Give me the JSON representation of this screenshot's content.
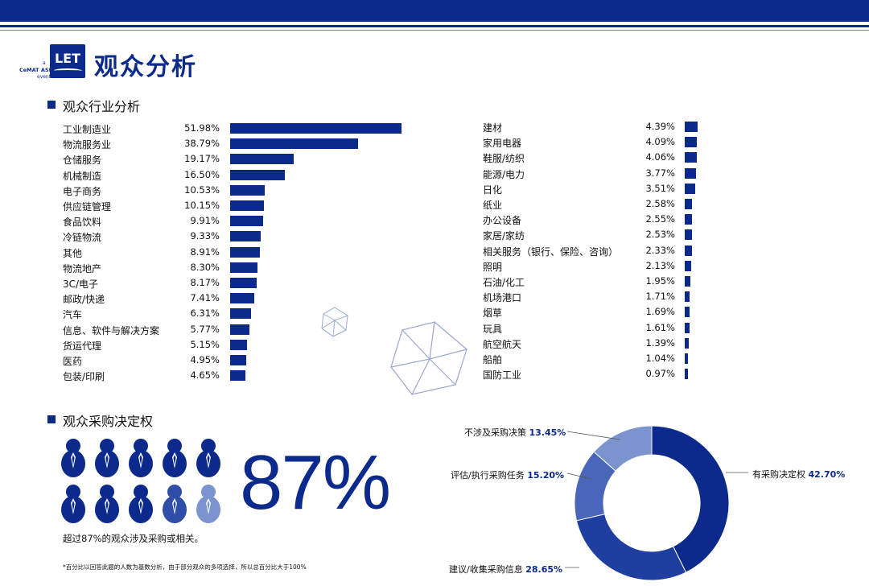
{
  "header": {
    "title": "观众分析",
    "logo_text": "LET",
    "logo_sub_a": "a",
    "logo_sub_brand": "CeMAT ASIA",
    "logo_sub_event": "event"
  },
  "industry_section": {
    "title": "观众行业分析"
  },
  "decision_section": {
    "title": "观众采购决定权",
    "big_number": "87%",
    "note": "超过87%的观众涉及采购或相关。",
    "people_total": 10,
    "people_highlighted": 9
  },
  "footnote": "*百分比以回答此题的人数为基数分析，由于部分观众的多项选择，所以总百分比大于100%",
  "colors": {
    "primary": "#0b2a8c",
    "donut": [
      "#0b2a8c",
      "#1f3fa0",
      "#4a66b8",
      "#7b93cf"
    ],
    "person_dark": "#0b2a8c",
    "person_mid": "#2f4ea8",
    "person_light": "#7b93cf"
  },
  "chart_data": [
    {
      "type": "bar",
      "orientation": "horizontal",
      "categories": [
        "工业制造业",
        "物流服务业",
        "仓储服务",
        "机械制造",
        "电子商务",
        "供应链管理",
        "食品饮料",
        "冷链物流",
        "其他",
        "物流地产",
        "3C/电子",
        "邮政/快递",
        "汽车",
        "信息、软件与解决方案",
        "货运代理",
        "医药",
        "包装/印刷"
      ],
      "values": [
        51.98,
        38.79,
        19.17,
        16.5,
        10.53,
        10.15,
        9.91,
        9.33,
        8.91,
        8.3,
        8.17,
        7.41,
        6.31,
        5.77,
        5.15,
        4.95,
        4.65
      ],
      "value_labels": [
        "51.98%",
        "38.79%",
        "19.17%",
        "16.50%",
        "10.53%",
        "10.15%",
        "9.91%",
        "9.33%",
        "8.91%",
        "8.30%",
        "8.17%",
        "7.41%",
        "6.31%",
        "5.77%",
        "5.15%",
        "4.95%",
        "4.65%"
      ]
    },
    {
      "type": "bar",
      "orientation": "horizontal",
      "categories": [
        "建材",
        "家用电器",
        "鞋服/纺织",
        "能源/电力",
        "日化",
        "纸业",
        "办公设备",
        "家居/家纺",
        "相关服务（银行、保险、咨询）",
        "照明",
        "石油/化工",
        "机场港口",
        "烟草",
        "玩具",
        "航空航天",
        "船舶",
        "国防工业"
      ],
      "values": [
        4.39,
        4.09,
        4.06,
        3.77,
        3.51,
        2.58,
        2.55,
        2.53,
        2.33,
        2.13,
        1.95,
        1.71,
        1.69,
        1.61,
        1.39,
        1.04,
        0.97
      ],
      "value_labels": [
        "4.39%",
        "4.09%",
        "4.06%",
        "3.77%",
        "3.51%",
        "2.58%",
        "2.55%",
        "2.53%",
        "2.33%",
        "2.13%",
        "1.95%",
        "1.71%",
        "1.69%",
        "1.61%",
        "1.39%",
        "1.04%",
        "0.97%"
      ]
    },
    {
      "type": "pie",
      "donut": true,
      "categories": [
        "有采购决定权",
        "建议/收集采购信息",
        "评估/执行采购任务",
        "不涉及采购决策"
      ],
      "values": [
        42.7,
        28.65,
        15.2,
        13.45
      ],
      "value_labels": [
        "42.70%",
        "28.65%",
        "15.20%",
        "13.45%"
      ]
    }
  ]
}
